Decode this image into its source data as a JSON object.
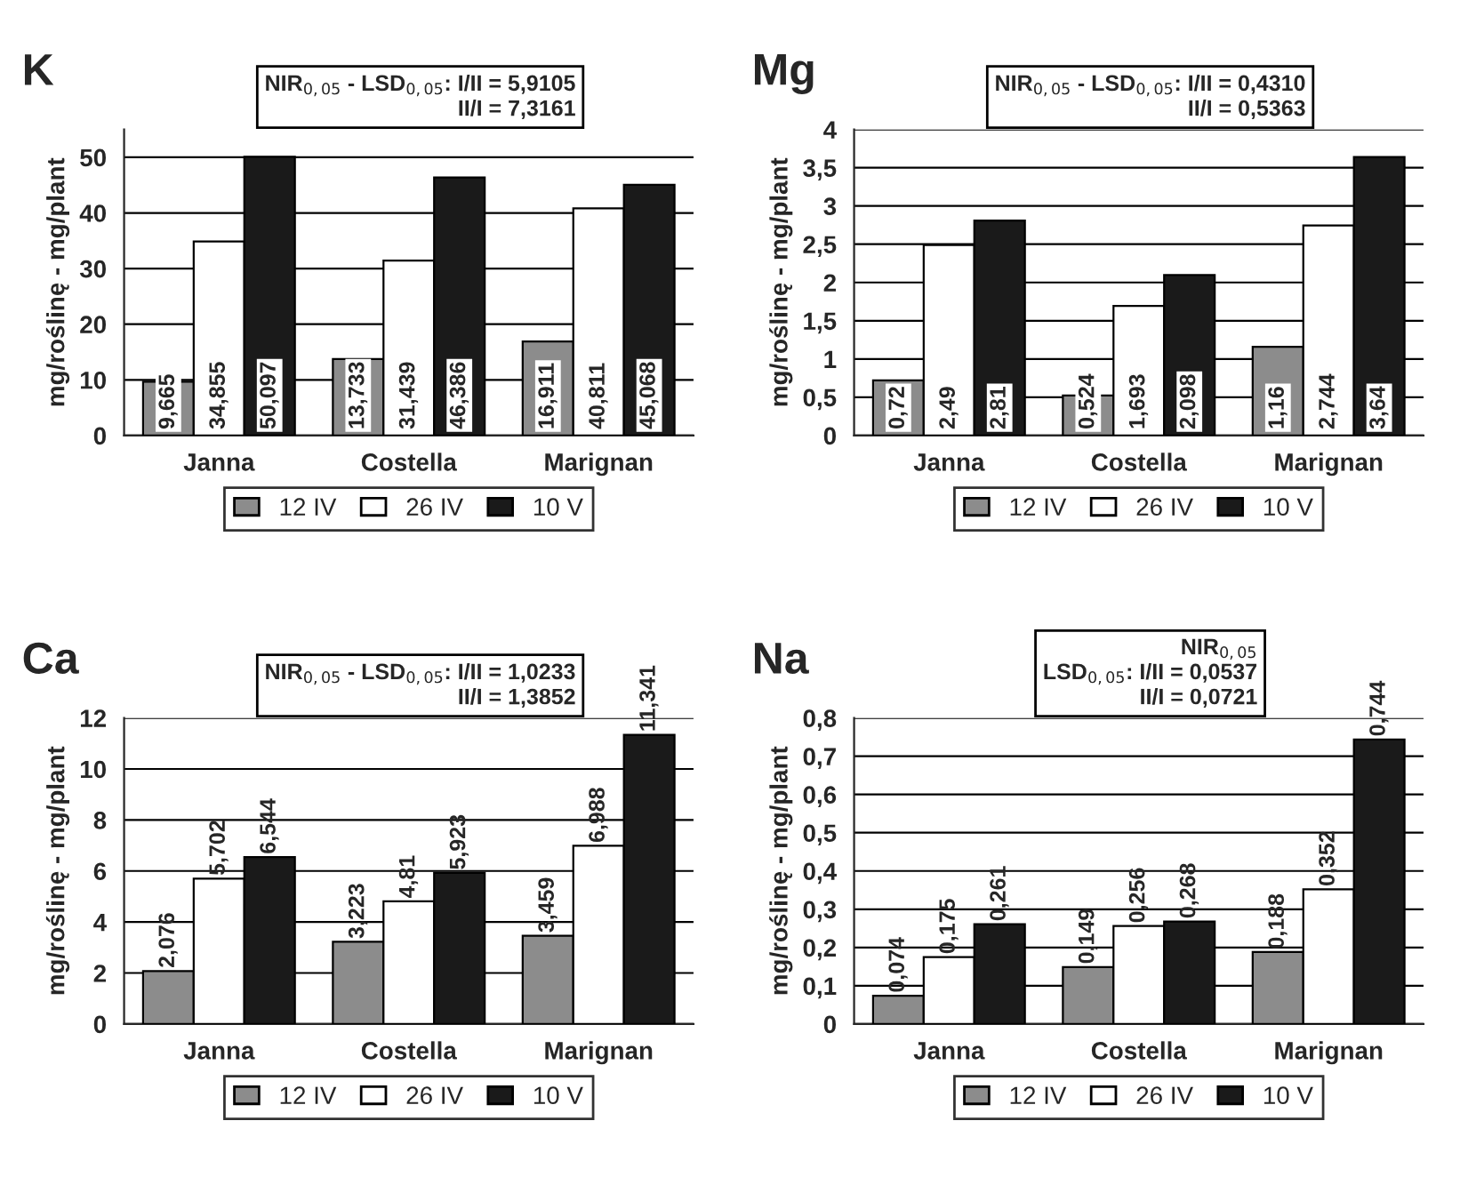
{
  "chart_data": [
    {
      "type": "bar",
      "title": "K",
      "annotations": [
        "NIR$_{0,05}$ - LSD$_{0,05}$: I/II = 5,9105\nII/I = 7,3161"
      ],
      "ylabel": "mg/roślinę - mg/plant",
      "categories": [
        "Janna",
        "Costella",
        "Marignan"
      ],
      "series": [
        {
          "name": "12 IV",
          "color": "#8c8c8c",
          "values": [
            9.665,
            13.733,
            16.911
          ],
          "value_labels": [
            "9,665",
            "13,733",
            "16,911"
          ]
        },
        {
          "name": "26 IV",
          "color": "#ffffff",
          "values": [
            34.855,
            31.439,
            40.811
          ],
          "value_labels": [
            "34,855",
            "31,439",
            "40,811"
          ]
        },
        {
          "name": "10 V",
          "color": "#1a1a1a",
          "values": [
            50.097,
            46.386,
            45.068
          ],
          "value_labels": [
            "50,097",
            "46,386",
            "45,068"
          ]
        }
      ],
      "ylim": [
        0,
        55
      ],
      "yticks": [
        0,
        10,
        20,
        30,
        40,
        50
      ],
      "grid": "y",
      "legend": "bottom"
    },
    {
      "type": "bar",
      "title": "Mg",
      "annotations": [
        "NIR$_{0,05}$ - LSD$_{0,05}$: I/II = 0,4310\nII/I = 0,5363"
      ],
      "ylabel": "mg/roślinę - mg/plant",
      "categories": [
        "Janna",
        "Costella",
        "Marignan"
      ],
      "series": [
        {
          "name": "12 IV",
          "color": "#8c8c8c",
          "values": [
            0.72,
            0.524,
            1.16
          ],
          "value_labels": [
            "0,72",
            "0,524",
            "1,16"
          ]
        },
        {
          "name": "26 IV",
          "color": "#ffffff",
          "values": [
            2.49,
            1.693,
            2.744
          ],
          "value_labels": [
            "2,49",
            "1,693",
            "2,744"
          ]
        },
        {
          "name": "10 V",
          "color": "#1a1a1a",
          "values": [
            2.81,
            2.098,
            3.64
          ],
          "value_labels": [
            "2,81",
            "2,098",
            "3,64"
          ]
        }
      ],
      "ylim": [
        0,
        4
      ],
      "yticks": [
        0,
        {
          "value": 0.5,
          "label": "0,5"
        },
        1,
        {
          "value": 1.5,
          "label": "1,5"
        },
        2,
        {
          "value": 2.5,
          "label": "2,5"
        },
        3,
        {
          "value": 3.5,
          "label": "3,5"
        },
        4
      ],
      "grid": "y",
      "legend": "bottom"
    },
    {
      "type": "bar",
      "title": "Ca",
      "annotations": [
        "NIR$_{0,05}$ - LSD$_{0,05}$: I/II = 1,0233\nII/I = 1,3852"
      ],
      "ylabel": "mg/roślinę - mg/plant",
      "categories": [
        "Janna",
        "Costella",
        "Marignan"
      ],
      "series": [
        {
          "name": "12 IV",
          "color": "#8c8c8c",
          "values": [
            2.076,
            3.223,
            3.459
          ],
          "value_labels": [
            "2,076",
            "3,223",
            "3,459"
          ]
        },
        {
          "name": "26 IV",
          "color": "#ffffff",
          "values": [
            5.702,
            4.81,
            6.988
          ],
          "value_labels": [
            "5,702",
            "4,81",
            "6,988"
          ]
        },
        {
          "name": "10 V",
          "color": "#1a1a1a",
          "values": [
            6.544,
            5.923,
            11.341
          ],
          "value_labels": [
            "6,544",
            "5,923",
            "11,341"
          ]
        }
      ],
      "ylim": [
        0,
        12
      ],
      "yticks": [
        0,
        2,
        4,
        6,
        8,
        10,
        12
      ],
      "grid": "y",
      "legend": "bottom"
    },
    {
      "type": "bar",
      "title": "Na",
      "annotations": [
        "NIR$_{0,05}$\nLSD$_{0,05}$: I/II = 0,0537\nII/I = 0,0721"
      ],
      "ylabel": "mg/roślinę - mg/plant",
      "categories": [
        "Janna",
        "Costella",
        "Marignan"
      ],
      "series": [
        {
          "name": "12 IV",
          "color": "#8c8c8c",
          "values": [
            0.074,
            0.149,
            0.188
          ],
          "value_labels": [
            "0,074",
            "0,149",
            "0,188"
          ]
        },
        {
          "name": "26 IV",
          "color": "#ffffff",
          "values": [
            0.175,
            0.256,
            0.352
          ],
          "value_labels": [
            "0,175",
            "0,256",
            "0,352"
          ]
        },
        {
          "name": "10 V",
          "color": "#1a1a1a",
          "values": [
            0.261,
            0.268,
            0.744
          ],
          "value_labels": [
            "0,261",
            "0,268",
            "0,744"
          ]
        }
      ],
      "ylim": [
        0,
        0.8
      ],
      "yticks": [
        0,
        {
          "value": 0.1,
          "label": "0,1"
        },
        {
          "value": 0.2,
          "label": "0,2"
        },
        {
          "value": 0.3,
          "label": "0,3"
        },
        {
          "value": 0.4,
          "label": "0,4"
        },
        {
          "value": 0.5,
          "label": "0,5"
        },
        {
          "value": 0.6,
          "label": "0,6"
        },
        {
          "value": 0.7,
          "label": "0,7"
        },
        {
          "value": 0.8,
          "label": "0,8"
        }
      ],
      "grid": "y",
      "legend": "bottom"
    }
  ]
}
